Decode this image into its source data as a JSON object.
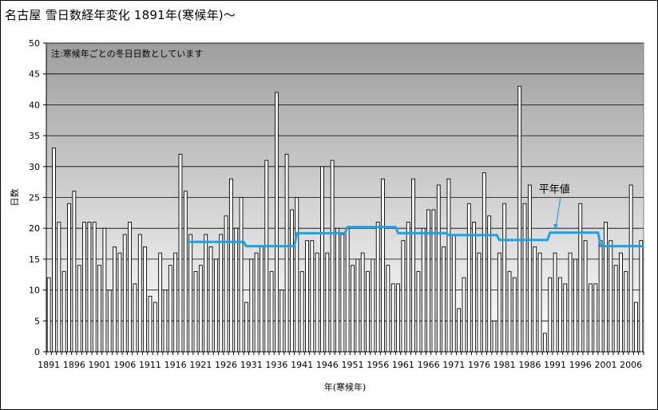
{
  "chart_data": {
    "type": "bar",
    "title": "名古屋 雪日数経年変化 1891年(寒候年)～",
    "note": "注:寒候年ごとの冬日日数としています",
    "xlabel": "年(寒候年)",
    "ylabel": "日数",
    "ylim": [
      0,
      50
    ],
    "yticks": [
      0,
      5,
      10,
      15,
      20,
      25,
      30,
      35,
      40,
      45,
      50
    ],
    "xtick_labels": [
      "1891",
      "1896",
      "1901",
      "1906",
      "1911",
      "1916",
      "1921",
      "1926",
      "1931",
      "1936",
      "1941",
      "1946",
      "1951",
      "1956",
      "1961",
      "1966",
      "1971",
      "1976",
      "1981",
      "1986",
      "1991",
      "1996",
      "2001",
      "2006"
    ],
    "grid": true,
    "series": [
      {
        "type": "bar",
        "x": [
          1891,
          1892,
          1893,
          1894,
          1895,
          1896,
          1897,
          1898,
          1899,
          1900,
          1901,
          1902,
          1903,
          1904,
          1905,
          1906,
          1907,
          1908,
          1909,
          1910,
          1911,
          1912,
          1913,
          1914,
          1915,
          1916,
          1917,
          1918,
          1919,
          1920,
          1921,
          1922,
          1923,
          1924,
          1925,
          1926,
          1927,
          1928,
          1929,
          1930,
          1931,
          1932,
          1933,
          1934,
          1935,
          1936,
          1937,
          1938,
          1939,
          1940,
          1941,
          1942,
          1943,
          1944,
          1945,
          1946,
          1947,
          1948,
          1949,
          1950,
          1951,
          1952,
          1953,
          1954,
          1955,
          1956,
          1957,
          1958,
          1959,
          1960,
          1961,
          1962,
          1963,
          1964,
          1965,
          1966,
          1967,
          1968,
          1969,
          1970,
          1971,
          1972,
          1973,
          1974,
          1975,
          1976,
          1977,
          1978,
          1979,
          1980,
          1981,
          1982,
          1983,
          1984,
          1985,
          1986,
          1987,
          1988,
          1989,
          1990,
          1991,
          1992,
          1993,
          1994,
          1995,
          1996,
          1997,
          1998,
          1999,
          2000,
          2001,
          2002,
          2003,
          2004,
          2005,
          2006,
          2007,
          2008
        ],
        "values": [
          12,
          33,
          21,
          13,
          24,
          26,
          14,
          21,
          21,
          21,
          14,
          20,
          10,
          17,
          16,
          19,
          21,
          11,
          19,
          17,
          9,
          8,
          16,
          10,
          14,
          16,
          32,
          26,
          19,
          13,
          14,
          19,
          17,
          15,
          19,
          22,
          28,
          20,
          25,
          8,
          15,
          16,
          17,
          31,
          13,
          42,
          10,
          32,
          23,
          25,
          13,
          18,
          18,
          16,
          30,
          16,
          31,
          20,
          19,
          20,
          14,
          15,
          16,
          13,
          15,
          21,
          28,
          14,
          11,
          11,
          18,
          21,
          28,
          13,
          20,
          23,
          23,
          27,
          17,
          28,
          19,
          7,
          12,
          24,
          21,
          16,
          29,
          22,
          5,
          16,
          24,
          13,
          12,
          43,
          24,
          27,
          17,
          16,
          3,
          12,
          16,
          12,
          11,
          16,
          15,
          24,
          18,
          11,
          11,
          18,
          21,
          18,
          14,
          16,
          13,
          27,
          8,
          18
        ]
      },
      {
        "name": "平年値",
        "type": "line",
        "color": "#1aa3e8",
        "x": [
          1919,
          1930,
          1930.5,
          1940,
          1940.5,
          1950,
          1950.5,
          1960,
          1960.5,
          1970,
          1970.5,
          1980,
          1980.5,
          1990,
          1990.5,
          2000,
          2000.5,
          2009
        ],
        "values": [
          17.8,
          17.8,
          17.1,
          17.1,
          19.2,
          19.2,
          20.2,
          20.2,
          19.2,
          19.2,
          18.9,
          18.9,
          18.1,
          18.1,
          19.3,
          19.3,
          17.1,
          17.1
        ]
      }
    ],
    "annotations": [
      {
        "text": "平年値",
        "points_to_year": 1991
      }
    ],
    "colors": {
      "plot_bg_top": "#9e9e9e",
      "plot_bg_bottom": "#ffffff",
      "bar_fill": "#ffffff",
      "bar_stroke": "#000000",
      "normal_line": "#1aa3e8"
    }
  }
}
